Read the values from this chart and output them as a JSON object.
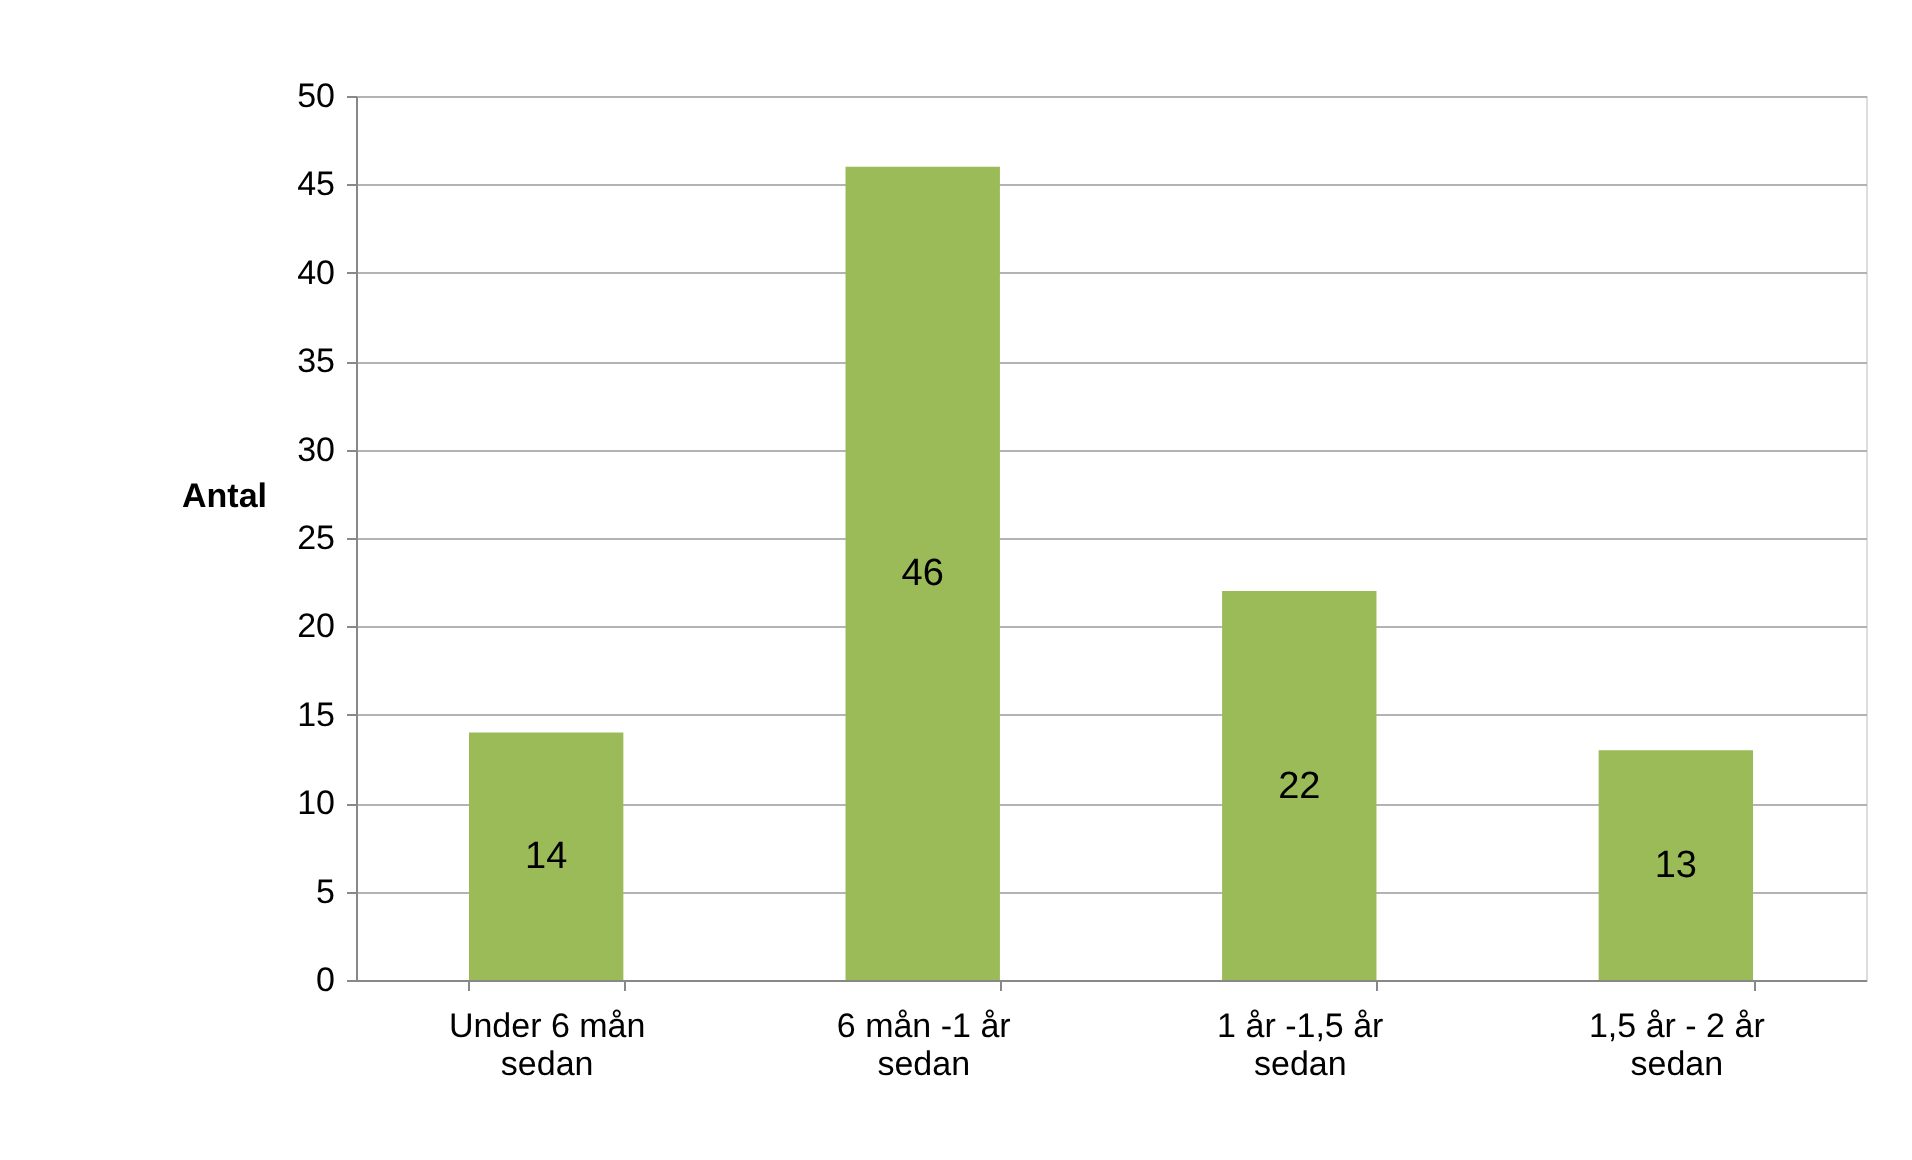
{
  "chart_data": {
    "type": "bar",
    "ylabel": "Antal",
    "categories": [
      "Under 6 mån sedan",
      "6 mån -1 år sedan",
      "1 år -1,5 år sedan",
      "1,5 år - 2 år sedan"
    ],
    "values": [
      14,
      46,
      22,
      13
    ],
    "color": "#9bbb59",
    "ylim": [
      0,
      50
    ],
    "yticks": [
      0,
      5,
      10,
      15,
      20,
      25,
      30,
      35,
      40,
      45,
      50
    ],
    "grid": "y",
    "data_labels": true
  }
}
